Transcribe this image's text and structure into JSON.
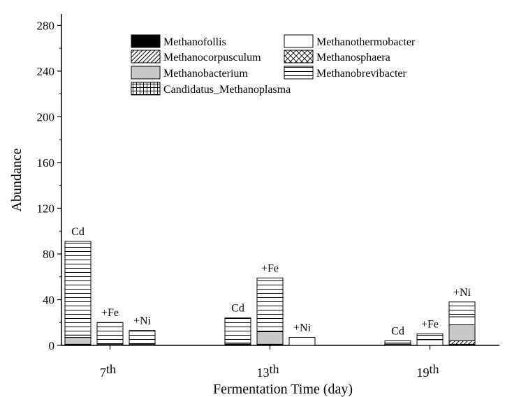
{
  "chart_data": {
    "type": "bar",
    "stacked": true,
    "xlabel": "Fermentation Time (day)",
    "ylabel": "Abundance",
    "ylim": [
      0,
      290
    ],
    "yticks": [
      0,
      40,
      80,
      120,
      160,
      200,
      240,
      280
    ],
    "grid": false,
    "legend_position": "top",
    "groups": [
      {
        "label": "7th",
        "bars": [
          {
            "label": "Cd",
            "values": [
              1,
              0,
              6,
              2,
              0,
              82,
              0
            ]
          },
          {
            "label": "+Fe",
            "values": [
              0,
              0,
              0,
              1,
              0,
              19,
              0
            ]
          },
          {
            "label": "+Ni",
            "values": [
              0,
              0,
              1,
              0,
              0,
              12,
              0
            ]
          }
        ]
      },
      {
        "label": "13th",
        "bars": [
          {
            "label": "Cd",
            "values": [
              1,
              0,
              1,
              0,
              0,
              22,
              0
            ]
          },
          {
            "label": "+Fe",
            "values": [
              1,
              0,
              11,
              0,
              0,
              47,
              0
            ]
          },
          {
            "label": "+Ni",
            "values": [
              0,
              0,
              0,
              7,
              0,
              0,
              0
            ]
          }
        ]
      },
      {
        "label": "19th",
        "bars": [
          {
            "label": "Cd",
            "values": [
              0,
              0,
              1,
              1,
              0,
              2,
              0
            ]
          },
          {
            "label": "+Fe",
            "values": [
              0,
              0,
              0,
              5,
              0,
              5,
              0
            ]
          },
          {
            "label": "+Ni",
            "values": [
              1,
              3,
              14,
              7,
              0,
              13,
              0
            ]
          }
        ]
      }
    ],
    "series": [
      {
        "name": "Methanofollis",
        "pattern": "solid-black"
      },
      {
        "name": "Methanocorpusculum",
        "pattern": "diagonal-hatch"
      },
      {
        "name": "Methanobacterium",
        "pattern": "solid-gray"
      },
      {
        "name": "Methanothermobacter",
        "pattern": "solid-white"
      },
      {
        "name": "Methanosphaera",
        "pattern": "cross-hatch"
      },
      {
        "name": "Methanobrevibacter",
        "pattern": "horizontal-lines"
      },
      {
        "name": "Candidatus_Methanoplasma",
        "pattern": "grid"
      }
    ],
    "colors": {
      "gray": "#c8c8c8",
      "black": "#000000",
      "white": "#ffffff"
    }
  }
}
